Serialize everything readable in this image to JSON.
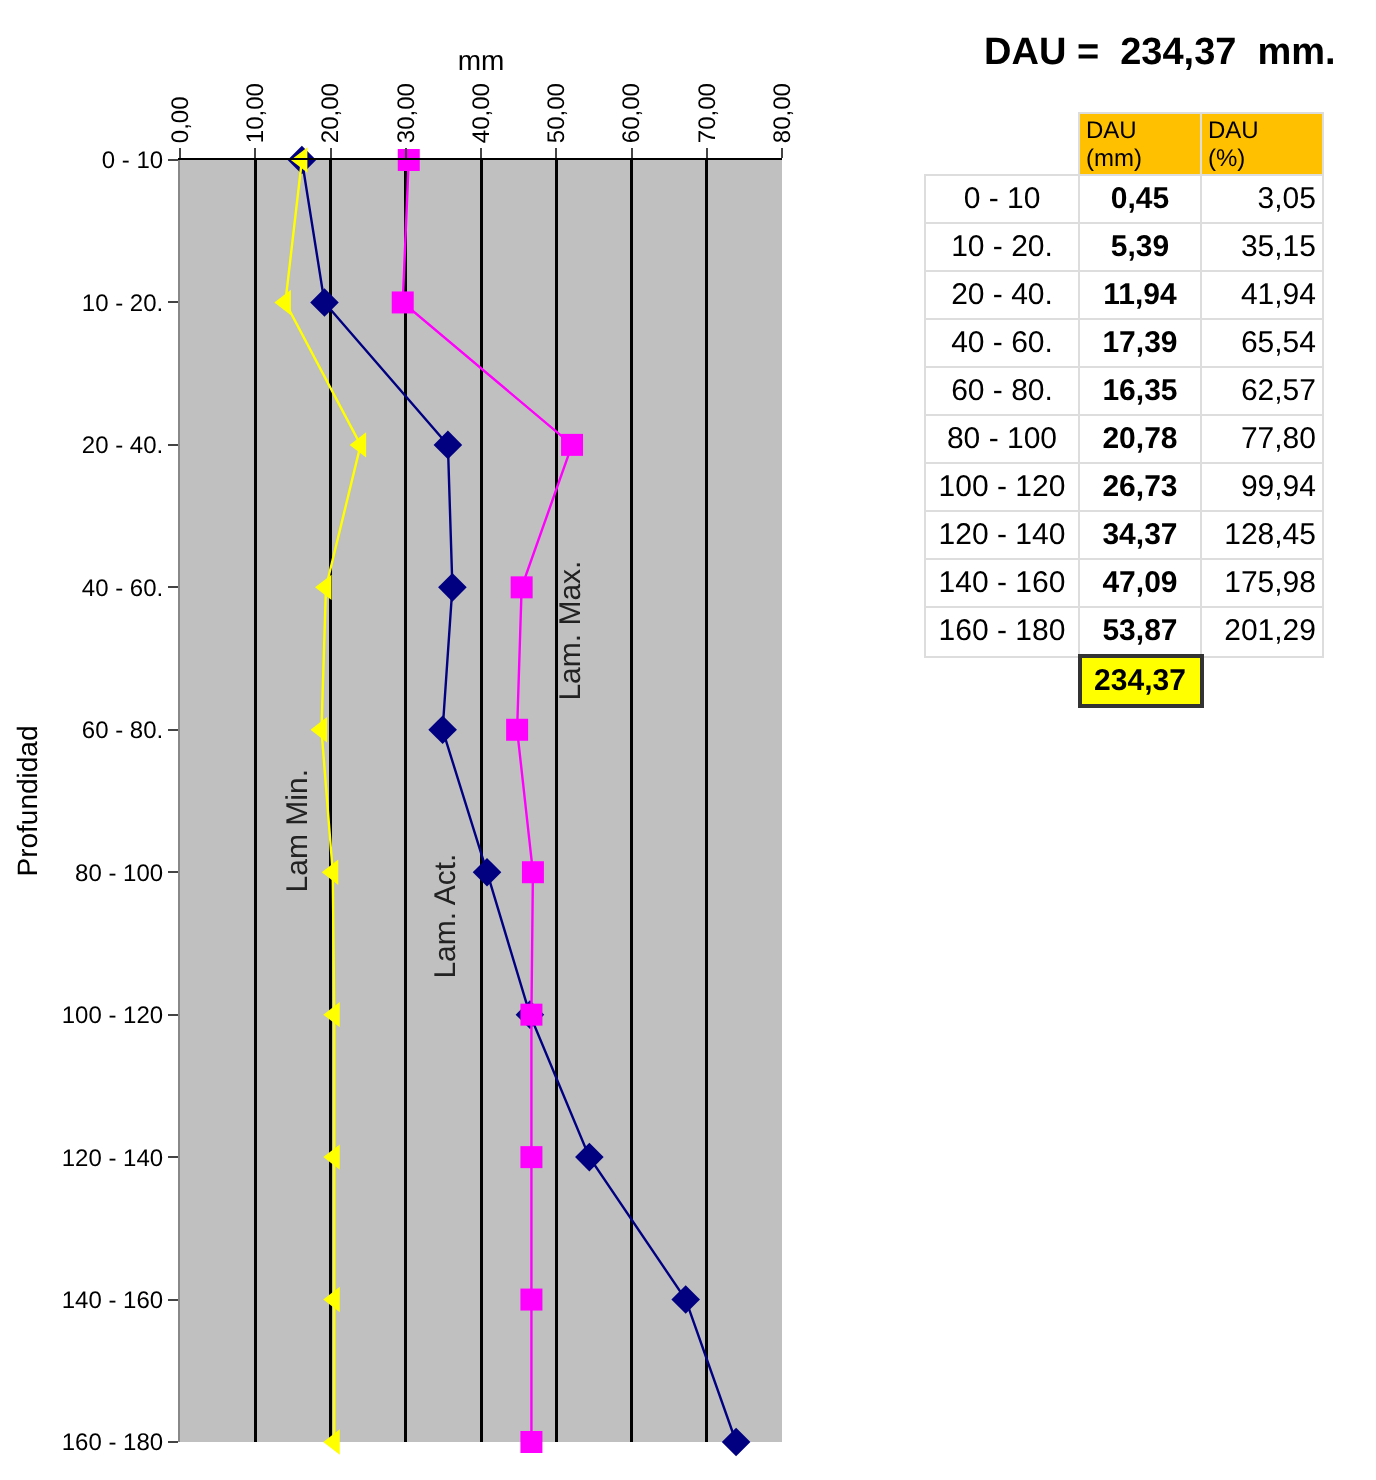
{
  "chart_data": [
    {
      "type": "line",
      "orientation": "horizontal",
      "xlabel": "mm",
      "ylabel": "Profundidad",
      "categories": [
        "0 - 10",
        "10 - 20.",
        "20 - 40.",
        "40 - 60.",
        "60 - 80.",
        "80 - 100",
        "100 - 120",
        "120 - 140",
        "140 - 160",
        "160 - 180"
      ],
      "xlim": [
        0,
        80
      ],
      "xticks": [
        {
          "value": 0,
          "label": "0,00"
        },
        {
          "value": 10,
          "label": "10,00"
        },
        {
          "value": 20,
          "label": "20,00"
        },
        {
          "value": 30,
          "label": "30,00"
        },
        {
          "value": 40,
          "label": "40,00"
        },
        {
          "value": 50,
          "label": "50,00"
        },
        {
          "value": 60,
          "label": "60,00"
        },
        {
          "value": 70,
          "label": "70,00"
        },
        {
          "value": 80,
          "label": "80,00"
        }
      ],
      "grid": "x",
      "legend": false,
      "series": [
        {
          "name": "Lam. Act.",
          "color": "#000080",
          "marker": "diamond",
          "values": [
            16.2,
            19.2,
            35.6,
            36.2,
            34.9,
            40.8,
            46.5,
            54.4,
            67.2,
            73.9
          ]
        },
        {
          "name": "Lam Min.",
          "color": "#ffff00",
          "marker": "triangle",
          "values": [
            16.2,
            14.0,
            24.0,
            19.4,
            18.8,
            20.3,
            20.5,
            20.5,
            20.5,
            20.5
          ]
        },
        {
          "name": "Lam. Max.",
          "color": "#ff00ff",
          "marker": "square",
          "values": [
            30.4,
            29.6,
            52.1,
            45.4,
            44.8,
            46.9,
            46.7,
            46.7,
            46.7,
            46.7
          ]
        }
      ]
    },
    {
      "type": "other",
      "title": "DAU =  234,37  mm.",
      "categories": [
        "0 - 10",
        "10 - 20.",
        "20 - 40.",
        "40 - 60.",
        "60 - 80.",
        "80 - 100",
        "100 - 120",
        "120 - 140",
        "140 - 160",
        "160 - 180"
      ],
      "series": [
        {
          "name": "DAU (mm)",
          "values": [
            0.45,
            5.39,
            11.94,
            17.39,
            16.35,
            20.78,
            26.73,
            34.37,
            47.09,
            53.87
          ],
          "value_labels": [
            "0,45",
            "5,39",
            "11,94",
            "17,39",
            "16,35",
            "20,78",
            "26,73",
            "34,37",
            "47,09",
            "53,87"
          ]
        },
        {
          "name": "DAU (%)",
          "values": [
            3.05,
            35.15,
            41.94,
            65.54,
            62.57,
            77.8,
            99.94,
            128.45,
            175.98,
            201.29
          ],
          "value_labels": [
            "3,05",
            "35,15",
            "41,94",
            "65,54",
            "62,57",
            "77,80",
            "99,94",
            "128,45",
            "175,98",
            "201,29"
          ]
        }
      ],
      "totals": [
        "234,37",
        null
      ]
    }
  ]
}
